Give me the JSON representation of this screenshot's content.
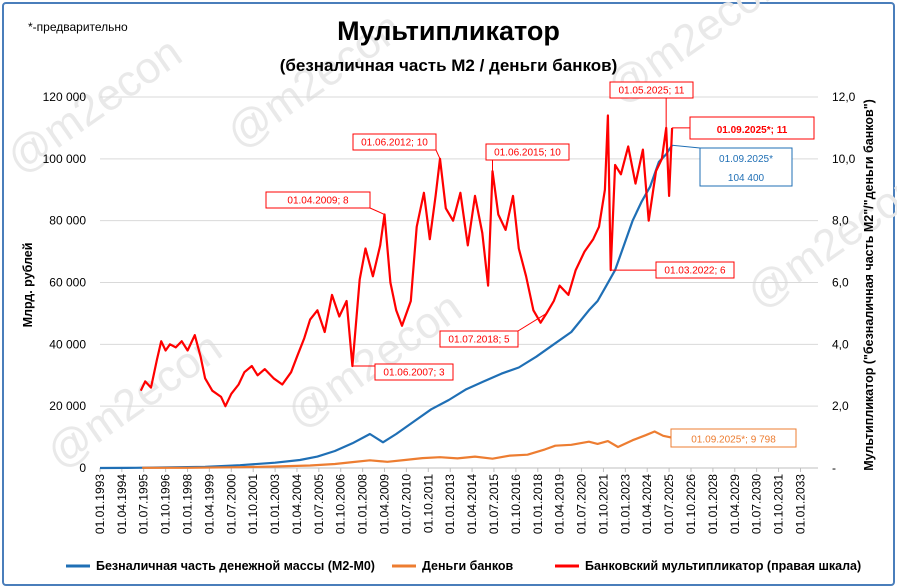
{
  "title": "Мультипликатор",
  "subtitle": "(безналичная часть М2 / деньги банков)",
  "note": "*-предварительно",
  "watermark": "@m2econ",
  "chart_data": {
    "type": "line",
    "ylabel": "Млрд. рублей",
    "y2label": "Мультипликатор (\"безналичная часть М2\"/\"деньги банков\")",
    "ylim": [
      0,
      120000
    ],
    "y2lim": [
      0,
      12
    ],
    "xlim": [
      "1993-01-01",
      "2034-01-01"
    ],
    "yticks": [
      "0",
      "20 000",
      "40 000",
      "60 000",
      "80 000",
      "100 000",
      "120 000"
    ],
    "y2ticks": [
      "-",
      "2,0",
      "4,0",
      "6,0",
      "8,0",
      "10,0",
      "12,0"
    ],
    "xticks": [
      "01.01.1993",
      "01.04.1994",
      "01.07.1995",
      "01.10.1996",
      "01.01.1998",
      "01.04.1999",
      "01.07.2000",
      "01.10.2001",
      "01.01.2003",
      "01.04.2004",
      "01.07.2005",
      "01.10.2006",
      "01.01.2008",
      "01.04.2009",
      "01.07.2010",
      "01.10.2011",
      "01.01.2013",
      "01.04.2014",
      "01.07.2015",
      "01.10.2016",
      "01.01.2018",
      "01.04.2019",
      "01.07.2020",
      "01.10.2021",
      "01.01.2023",
      "01.04.2024",
      "01.07.2025",
      "01.10.2026",
      "01.01.2028",
      "01.04.2029",
      "01.07.2030",
      "01.10.2031",
      "01.01.2033"
    ],
    "grid": true,
    "legend_position": "bottom",
    "series": [
      {
        "name": "Безналичная часть денежной массы (М2-М0)",
        "axis": "left",
        "color": "#1f6fb5",
        "points": [
          [
            "1993-01-01",
            10
          ],
          [
            "1995-01-01",
            60
          ],
          [
            "1997-01-01",
            180
          ],
          [
            "1999-01-01",
            350
          ],
          [
            "2001-01-01",
            900
          ],
          [
            "2003-01-01",
            1700
          ],
          [
            "2004-06-01",
            2600
          ],
          [
            "2005-06-01",
            3700
          ],
          [
            "2006-06-01",
            5500
          ],
          [
            "2007-06-01",
            8000
          ],
          [
            "2008-06-01",
            11000
          ],
          [
            "2009-03-01",
            8300
          ],
          [
            "2009-12-01",
            11000
          ],
          [
            "2010-12-01",
            15000
          ],
          [
            "2011-12-01",
            19000
          ],
          [
            "2012-12-01",
            22000
          ],
          [
            "2013-12-01",
            25500
          ],
          [
            "2014-12-01",
            28000
          ],
          [
            "2015-12-01",
            30500
          ],
          [
            "2016-12-01",
            32500
          ],
          [
            "2017-12-01",
            36000
          ],
          [
            "2018-12-01",
            40000
          ],
          [
            "2019-12-01",
            44000
          ],
          [
            "2020-12-01",
            51000
          ],
          [
            "2021-06-01",
            54000
          ],
          [
            "2021-12-01",
            59000
          ],
          [
            "2022-06-01",
            64000
          ],
          [
            "2022-12-01",
            72000
          ],
          [
            "2023-06-01",
            80000
          ],
          [
            "2023-12-01",
            86000
          ],
          [
            "2024-06-01",
            91000
          ],
          [
            "2024-12-01",
            99000
          ],
          [
            "2025-05-01",
            101500
          ],
          [
            "2025-09-01",
            104400
          ]
        ]
      },
      {
        "name": "Деньги банков",
        "axis": "left",
        "color": "#ed7d31",
        "points": [
          [
            "1995-06-01",
            50
          ],
          [
            "1998-01-01",
            80
          ],
          [
            "2001-01-01",
            250
          ],
          [
            "2003-01-01",
            500
          ],
          [
            "2005-01-01",
            800
          ],
          [
            "2006-06-01",
            1300
          ],
          [
            "2007-06-01",
            1900
          ],
          [
            "2008-06-01",
            2500
          ],
          [
            "2009-06-01",
            2000
          ],
          [
            "2010-06-01",
            2600
          ],
          [
            "2011-06-01",
            3200
          ],
          [
            "2012-06-01",
            3500
          ],
          [
            "2013-06-01",
            3100
          ],
          [
            "2014-06-01",
            3700
          ],
          [
            "2015-06-01",
            3000
          ],
          [
            "2016-06-01",
            4000
          ],
          [
            "2017-06-01",
            4300
          ],
          [
            "2018-06-01",
            6000
          ],
          [
            "2019-01-01",
            7200
          ],
          [
            "2019-12-01",
            7500
          ],
          [
            "2020-12-01",
            8500
          ],
          [
            "2021-06-01",
            7800
          ],
          [
            "2022-01-01",
            8700
          ],
          [
            "2022-08-01",
            6800
          ],
          [
            "2023-06-01",
            9000
          ],
          [
            "2024-03-01",
            10600
          ],
          [
            "2024-09-01",
            11800
          ],
          [
            "2025-03-01",
            10400
          ],
          [
            "2025-09-01",
            9798
          ]
        ]
      },
      {
        "name": "Банковский мультипликатор (правая шкала)",
        "axis": "right",
        "color": "#ff0000",
        "points": [
          [
            "1995-05-01",
            2.5
          ],
          [
            "1995-08-01",
            2.8
          ],
          [
            "1995-12-01",
            2.6
          ],
          [
            "1996-04-01",
            3.5
          ],
          [
            "1996-07-01",
            4.1
          ],
          [
            "1996-10-01",
            3.8
          ],
          [
            "1997-01-01",
            4.0
          ],
          [
            "1997-05-01",
            3.9
          ],
          [
            "1997-09-01",
            4.1
          ],
          [
            "1998-01-01",
            3.8
          ],
          [
            "1998-06-01",
            4.3
          ],
          [
            "1998-10-01",
            3.6
          ],
          [
            "1999-01-01",
            2.9
          ],
          [
            "1999-06-01",
            2.5
          ],
          [
            "1999-12-01",
            2.3
          ],
          [
            "2000-03-01",
            2.0
          ],
          [
            "2000-07-01",
            2.4
          ],
          [
            "2000-12-01",
            2.7
          ],
          [
            "2001-04-01",
            3.1
          ],
          [
            "2001-09-01",
            3.3
          ],
          [
            "2002-01-01",
            3.0
          ],
          [
            "2002-06-01",
            3.2
          ],
          [
            "2002-12-01",
            2.9
          ],
          [
            "2003-06-01",
            2.7
          ],
          [
            "2003-12-01",
            3.1
          ],
          [
            "2004-04-01",
            3.6
          ],
          [
            "2004-09-01",
            4.2
          ],
          [
            "2005-01-01",
            4.8
          ],
          [
            "2005-06-01",
            5.1
          ],
          [
            "2005-11-01",
            4.4
          ],
          [
            "2006-04-01",
            5.6
          ],
          [
            "2006-09-01",
            4.9
          ],
          [
            "2007-02-01",
            5.4
          ],
          [
            "2007-06-01",
            3.3
          ],
          [
            "2007-11-01",
            6.1
          ],
          [
            "2008-03-01",
            7.1
          ],
          [
            "2008-08-01",
            6.2
          ],
          [
            "2009-01-01",
            7.2
          ],
          [
            "2009-04-01",
            8.2
          ],
          [
            "2009-08-01",
            6.0
          ],
          [
            "2009-12-01",
            5.1
          ],
          [
            "2010-04-01",
            4.6
          ],
          [
            "2010-10-01",
            5.4
          ],
          [
            "2011-02-01",
            7.8
          ],
          [
            "2011-07-01",
            8.9
          ],
          [
            "2011-11-01",
            7.4
          ],
          [
            "2012-03-01",
            8.8
          ],
          [
            "2012-06-01",
            10.0
          ],
          [
            "2012-10-01",
            8.4
          ],
          [
            "2013-03-01",
            8.0
          ],
          [
            "2013-08-01",
            8.9
          ],
          [
            "2014-01-01",
            7.2
          ],
          [
            "2014-06-01",
            8.8
          ],
          [
            "2014-11-01",
            7.6
          ],
          [
            "2015-03-01",
            5.9
          ],
          [
            "2015-06-01",
            9.6
          ],
          [
            "2015-10-01",
            8.2
          ],
          [
            "2016-03-01",
            7.7
          ],
          [
            "2016-08-01",
            8.8
          ],
          [
            "2016-12-01",
            7.1
          ],
          [
            "2017-05-01",
            6.2
          ],
          [
            "2017-10-01",
            5.1
          ],
          [
            "2018-03-01",
            4.7
          ],
          [
            "2018-07-01",
            5.0
          ],
          [
            "2018-12-01",
            5.4
          ],
          [
            "2019-04-01",
            5.9
          ],
          [
            "2019-10-01",
            5.6
          ],
          [
            "2020-03-01",
            6.4
          ],
          [
            "2020-09-01",
            7.0
          ],
          [
            "2021-03-01",
            7.4
          ],
          [
            "2021-07-01",
            7.8
          ],
          [
            "2021-11-01",
            9.0
          ],
          [
            "2022-01-01",
            11.4
          ],
          [
            "2022-03-01",
            6.4
          ],
          [
            "2022-06-01",
            9.8
          ],
          [
            "2022-10-01",
            9.5
          ],
          [
            "2023-03-01",
            10.4
          ],
          [
            "2023-08-01",
            9.2
          ],
          [
            "2024-01-01",
            10.3
          ],
          [
            "2024-05-01",
            8.0
          ],
          [
            "2024-10-01",
            9.6
          ],
          [
            "2025-02-01",
            10.0
          ],
          [
            "2025-05-01",
            11.0
          ],
          [
            "2025-07-01",
            8.8
          ],
          [
            "2025-09-01",
            11.0
          ]
        ]
      }
    ],
    "annotations": [
      {
        "text": "01.04.2009; 8",
        "color": "#ff0000"
      },
      {
        "text": "01.06.2012; 10",
        "color": "#ff0000"
      },
      {
        "text": "01.06.2015; 10",
        "color": "#ff0000"
      },
      {
        "text": "01.05.2025; 11",
        "color": "#ff0000"
      },
      {
        "text": "01.09.2025*; 11",
        "color": "#ff0000"
      },
      {
        "text": "01.09.2025*",
        "color": "#1f6fb5"
      },
      {
        "text": "104 400",
        "color": "#1f6fb5"
      },
      {
        "text": "01.03.2022; 6",
        "color": "#ff0000"
      },
      {
        "text": "01.07.2018; 5",
        "color": "#ff0000"
      },
      {
        "text": "01.06.2007; 3",
        "color": "#ff0000"
      },
      {
        "text": "01.09.2025*; 9 798",
        "color": "#ed7d31"
      }
    ]
  }
}
